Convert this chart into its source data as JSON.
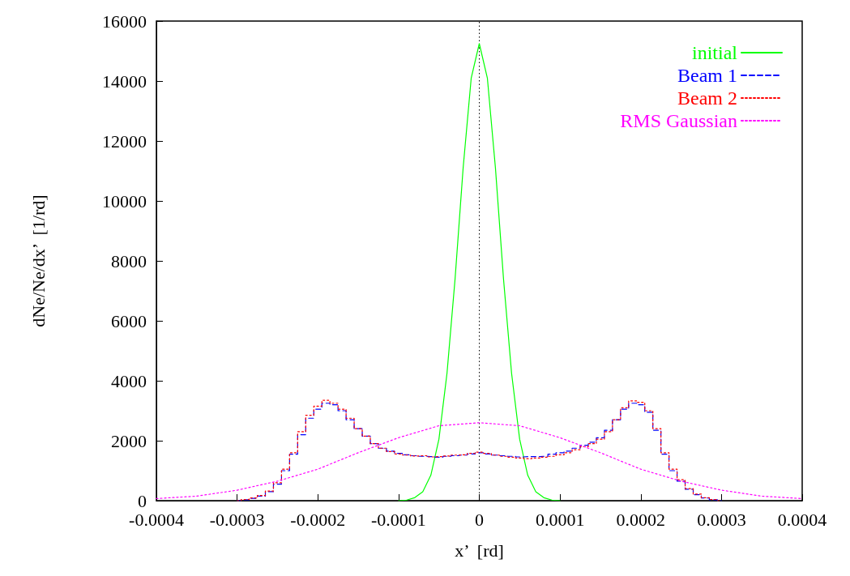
{
  "chart_data": {
    "type": "line",
    "xlabel": "x’  [rd]",
    "ylabel": "dNe/Ne/dx’  [1/rd]",
    "xlim": [
      -0.0004,
      0.0004
    ],
    "xticks": [
      -0.0004,
      -0.0003,
      -0.0002,
      -0.0001,
      0,
      0.0001,
      0.0002,
      0.0003,
      0.0004
    ],
    "ylim": [
      0,
      16000
    ],
    "yticks": [
      0,
      2000,
      4000,
      6000,
      8000,
      10000,
      12000,
      14000,
      16000
    ],
    "grid": false,
    "legend": "top right",
    "marker": "none",
    "ref_lines": [
      {
        "axis": "x",
        "value": 0,
        "color": "#000000",
        "line_style": "dotted"
      }
    ],
    "series": [
      {
        "name": "initial",
        "color": "#00ff00",
        "line_style": "solid",
        "x": [
          -0.0001,
          -9e-05,
          -8e-05,
          -7e-05,
          -6e-05,
          -5e-05,
          -4e-05,
          -3e-05,
          -2e-05,
          -1e-05,
          0,
          1e-05,
          2e-05,
          3e-05,
          4e-05,
          5e-05,
          6e-05,
          7e-05,
          8e-05,
          9e-05,
          0.0001
        ],
        "values": [
          0,
          20,
          100,
          300,
          850,
          2050,
          4250,
          7400,
          11100,
          14100,
          15250,
          14100,
          11100,
          7400,
          4250,
          2050,
          850,
          300,
          100,
          20,
          0
        ]
      },
      {
        "name": "Beam 1",
        "type": "step",
        "color": "#0000ff",
        "line_style": "dashed",
        "x": [
          -0.0003,
          -0.00029,
          -0.00028,
          -0.00027,
          -0.00026,
          -0.00025,
          -0.00024,
          -0.00023,
          -0.00022,
          -0.00021,
          -0.0002,
          -0.00019,
          -0.00018,
          -0.00017,
          -0.00016,
          -0.00015,
          -0.00014,
          -0.00013,
          -0.00012,
          -0.00011,
          -0.0001,
          -9e-05,
          -8e-05,
          -7e-05,
          -6e-05,
          -5e-05,
          -4e-05,
          -3e-05,
          -2e-05,
          -1e-05,
          0,
          1e-05,
          2e-05,
          3e-05,
          4e-05,
          5e-05,
          6e-05,
          7e-05,
          8e-05,
          9e-05,
          0.0001,
          0.00011,
          0.00012,
          0.00013,
          0.00014,
          0.00015,
          0.00016,
          0.00017,
          0.00018,
          0.00019,
          0.0002,
          0.00021,
          0.00022,
          0.00023,
          0.00024,
          0.00025,
          0.00026,
          0.00027,
          0.00028,
          0.00029,
          0.0003
        ],
        "values": [
          0,
          30,
          80,
          150,
          300,
          550,
          1000,
          1550,
          2200,
          2750,
          3050,
          3250,
          3200,
          3000,
          2700,
          2400,
          2150,
          1900,
          1750,
          1650,
          1580,
          1530,
          1500,
          1480,
          1470,
          1450,
          1480,
          1500,
          1520,
          1560,
          1600,
          1560,
          1520,
          1500,
          1480,
          1460,
          1470,
          1470,
          1480,
          1550,
          1600,
          1650,
          1750,
          1850,
          1950,
          2100,
          2350,
          2700,
          3050,
          3250,
          3200,
          2950,
          2350,
          1550,
          1000,
          650,
          380,
          200,
          90,
          30,
          0
        ]
      },
      {
        "name": "Beam 2",
        "type": "step",
        "color": "#ff0000",
        "line_style": "dotted",
        "x": [
          -0.0003,
          -0.00029,
          -0.00028,
          -0.00027,
          -0.00026,
          -0.00025,
          -0.00024,
          -0.00023,
          -0.00022,
          -0.00021,
          -0.0002,
          -0.00019,
          -0.00018,
          -0.00017,
          -0.00016,
          -0.00015,
          -0.00014,
          -0.00013,
          -0.00012,
          -0.00011,
          -0.0001,
          -9e-05,
          -8e-05,
          -7e-05,
          -6e-05,
          -5e-05,
          -4e-05,
          -3e-05,
          -2e-05,
          -1e-05,
          0,
          1e-05,
          2e-05,
          3e-05,
          4e-05,
          5e-05,
          6e-05,
          7e-05,
          8e-05,
          9e-05,
          0.0001,
          0.00011,
          0.00012,
          0.00013,
          0.00014,
          0.00015,
          0.00016,
          0.00017,
          0.00018,
          0.00019,
          0.0002,
          0.00021,
          0.00022,
          0.00023,
          0.00024,
          0.00025,
          0.00026,
          0.00027,
          0.00028,
          0.00029,
          0.0003
        ],
        "values": [
          0,
          40,
          90,
          170,
          320,
          600,
          1050,
          1600,
          2300,
          2850,
          3150,
          3350,
          3250,
          3050,
          2750,
          2400,
          2150,
          1900,
          1750,
          1640,
          1560,
          1520,
          1490,
          1500,
          1460,
          1470,
          1490,
          1520,
          1530,
          1580,
          1620,
          1580,
          1520,
          1480,
          1450,
          1420,
          1400,
          1420,
          1450,
          1480,
          1530,
          1600,
          1700,
          1800,
          1900,
          2050,
          2300,
          2700,
          3100,
          3330,
          3280,
          3000,
          2400,
          1600,
          1050,
          700,
          400,
          220,
          100,
          40,
          0
        ]
      },
      {
        "name": "RMS Gaussian",
        "color": "#ff00ff",
        "line_style": "dotted",
        "x": [
          -0.0004,
          -0.00035,
          -0.0003,
          -0.00025,
          -0.0002,
          -0.00015,
          -0.0001,
          -5e-05,
          0,
          5e-05,
          0.0001,
          0.00015,
          0.0002,
          0.00025,
          0.0003,
          0.00035,
          0.0004
        ],
        "values": [
          70,
          150,
          350,
          650,
          1050,
          1600,
          2100,
          2500,
          2600,
          2500,
          2100,
          1600,
          1050,
          650,
          350,
          150,
          70
        ]
      }
    ]
  }
}
